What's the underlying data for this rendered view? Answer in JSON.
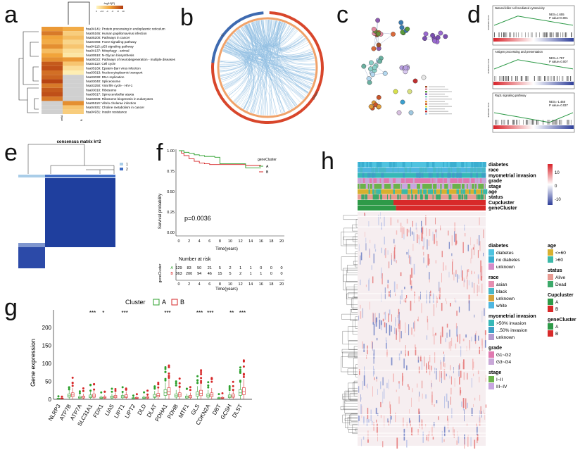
{
  "panels": {
    "a": "a",
    "b": "b",
    "c": "c",
    "d": "d",
    "e": "e",
    "f": "f",
    "g": "g",
    "h": "h"
  },
  "panel_a": {
    "legend_title": "-log10(P)",
    "legend_ticks": [
      "0",
      "-2.0",
      "-4",
      "-6",
      "-8",
      "10"
    ],
    "columns": [
      "cellA",
      "B"
    ],
    "pathways": [
      "hsa04141: Protein processing in endoplasmic reticulum",
      "hsa05165: Human papillomavirus infection",
      "hsa05200: Pathways in cancer",
      "hsa04068: FoxO signaling pathway",
      "hsa04115: p53 signaling pathway",
      "hsa04137: Mitophagy - animal",
      "hsa00510: N-Glycan biosynthesis",
      "hsa05022: Pathways of neurodegeneration - multiple diseases",
      "hsa04110: Cell cycle",
      "hsa05169: Epstein-Barr virus infection",
      "hsa03013: Nucleocytoplasmic transport",
      "hsa03030: DNA replication",
      "hsa03040: Spliceosome",
      "hsa03250: Viral life cycle - HIV-1",
      "hsa03010: Ribosome",
      "hsa05017: Spinocerebellar ataxia",
      "hsa03008: Ribosome biogenesis in eukaryotes",
      "hsa05110: Vibrio cholerae infection",
      "hsa04931: Choline metabolism in cancer",
      "hsa04931: Insulin resistance"
    ],
    "matrix": [
      [
        0.55,
        0.45
      ],
      [
        0.7,
        0.25
      ],
      [
        0.5,
        0.35
      ],
      [
        0.45,
        0.2
      ],
      [
        0.6,
        0.3
      ],
      [
        0.35,
        0.15
      ],
      [
        0.5,
        0.1
      ],
      [
        0.6,
        0.55
      ],
      [
        0.85,
        0.3
      ],
      [
        0.9,
        0.15
      ],
      [
        0.75,
        0.05
      ],
      [
        0.8,
        -1
      ],
      [
        0.95,
        -1
      ],
      [
        0.7,
        -1
      ],
      [
        0.85,
        -1
      ],
      [
        0.9,
        -1
      ],
      [
        0.7,
        -1
      ],
      [
        -1,
        0.6
      ],
      [
        -1,
        0.3
      ],
      [
        -1,
        0.25
      ]
    ]
  },
  "panel_b": {
    "label_top": "U",
    "label_right": "Down"
  },
  "panel_d": {
    "plots": [
      {
        "title": "Natural killer cell mediated cytotoxicity",
        "nes": "NES=1.655",
        "p": "P value<0.001"
      },
      {
        "title": "Antigen processing and presentation",
        "nes": "NES=1.757",
        "p": "P value=0.007"
      },
      {
        "title": "Rap1 signaling pathway",
        "nes": "NES=-1.468",
        "p": "P value=0.037"
      }
    ],
    "ylab": "Enrichment Score"
  },
  "panel_e": {
    "title": "consensus matrix k=2",
    "legend": [
      "1",
      "2"
    ]
  },
  "panel_f": {
    "ylabel": "Survival probability",
    "xlabel": "Time(years)",
    "legend_title": "geneCluster",
    "legend": [
      "A",
      "B"
    ],
    "pvalue": "p=0.0036",
    "yticks": [
      "0.00",
      "0.25",
      "0.50",
      "0.75",
      "1.00"
    ],
    "xticks": [
      "0",
      "2",
      "4",
      "6",
      "8",
      "10",
      "12",
      "14",
      "16",
      "18",
      "20"
    ],
    "risk_title": "Number at risk",
    "risk_ylab": "geneCluster",
    "risk_rows": [
      {
        "name": "A",
        "values": [
          "129",
          "83",
          "50",
          "21",
          "5",
          "2",
          "1",
          "1",
          "0",
          "0",
          "0"
        ]
      },
      {
        "name": "B",
        "values": [
          "363",
          "200",
          "94",
          "46",
          "15",
          "5",
          "2",
          "1",
          "1",
          "0",
          "0"
        ]
      }
    ]
  },
  "panel_g": {
    "legend_title": "Cluster",
    "legend": [
      "A",
      "B"
    ],
    "ylabel": "Gene expression",
    "yticks": [
      "0",
      "50",
      "100",
      "150",
      "200"
    ],
    "genes": [
      "NLRP3",
      "ATP7B",
      "ATP7A",
      "SLC31A1",
      "FDX1",
      "LIAS",
      "LIPT1",
      "LIPT2",
      "DLD",
      "DLAT",
      "PDHA1",
      "PDHB",
      "MTF1",
      "GLS",
      "CDKN2A",
      "DBT",
      "GCSH",
      "DLST"
    ],
    "sig": [
      "",
      "",
      "",
      "***",
      "*",
      "",
      "***",
      "",
      "",
      "",
      "***",
      "",
      "",
      "***",
      "***",
      "",
      "**",
      "***"
    ]
  },
  "panel_h": {
    "tracks": [
      "diabetes",
      "race",
      "myometrial invasion",
      "grade",
      "stage",
      "age",
      "status",
      "Cupcluster",
      "geneCluster"
    ],
    "scale": [
      "10",
      "0",
      "-10"
    ],
    "legends": [
      {
        "title": "diabetes",
        "items": [
          {
            "label": "diabetes",
            "color": "#4fc3e0"
          },
          {
            "label": "no diabetes",
            "color": "#3aaed0"
          },
          {
            "label": "unknown",
            "color": "#d58bc8"
          }
        ]
      },
      {
        "title": "race",
        "items": [
          {
            "label": "asian",
            "color": "#e58fb0"
          },
          {
            "label": "black",
            "color": "#49b8c8"
          },
          {
            "label": "unknown",
            "color": "#d6a33c"
          },
          {
            "label": "white",
            "color": "#4fb6e0"
          }
        ]
      },
      {
        "title": "myometrial invasion",
        "items": [
          {
            "label": ">50% invasion",
            "color": "#36b8b8"
          },
          {
            "label": "...50% invasion",
            "color": "#3e9fc6"
          },
          {
            "label": "unknown",
            "color": "#b59bd0"
          }
        ]
      },
      {
        "title": "grade",
        "items": [
          {
            "label": "G1~G2",
            "color": "#e07ab0"
          },
          {
            "label": "G3~G4",
            "color": "#c9a8d8"
          }
        ]
      },
      {
        "title": "stage",
        "items": [
          {
            "label": "I~II",
            "color": "#6ab24a"
          },
          {
            "label": "III~IV",
            "color": "#c8a6e0"
          }
        ]
      },
      {
        "title": "age",
        "items": [
          {
            "label": "<=60",
            "color": "#d8b030"
          },
          {
            "label": ">60",
            "color": "#3cb8a8"
          }
        ]
      },
      {
        "title": "status",
        "items": [
          {
            "label": "Alive",
            "color": "#e89a92"
          },
          {
            "label": "Dead",
            "color": "#3ca96a"
          }
        ]
      },
      {
        "title": "Cupcluster",
        "items": [
          {
            "label": "A",
            "color": "#2e9a48"
          },
          {
            "label": "B",
            "color": "#d82a2a"
          }
        ]
      },
      {
        "title": "geneCluster",
        "items": [
          {
            "label": "A",
            "color": "#2e9a48"
          },
          {
            "label": "B",
            "color": "#d82a2a"
          }
        ]
      }
    ]
  }
}
